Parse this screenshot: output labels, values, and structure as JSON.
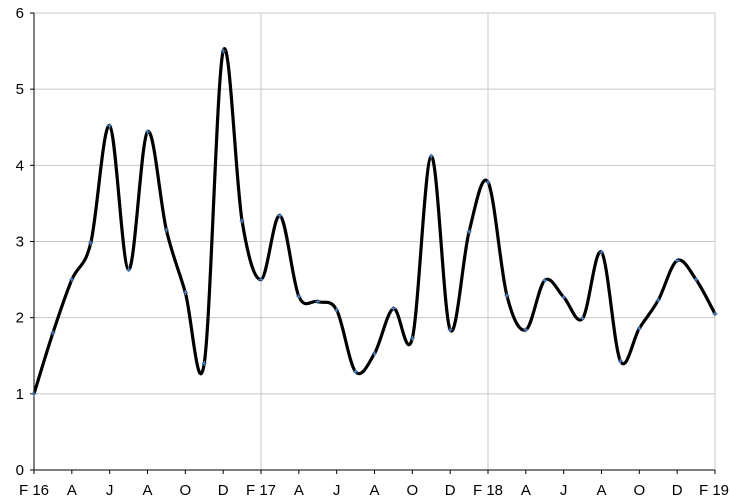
{
  "chart_data": {
    "type": "line",
    "title": "",
    "xlabel": "",
    "ylabel": "",
    "ylim": [
      0,
      6
    ],
    "yticks": [
      0,
      1,
      2,
      3,
      4,
      5,
      6
    ],
    "grid": {
      "horizontal": true,
      "vertical": "at year boundaries"
    },
    "legend": "none",
    "smooth": true,
    "x_tick_labels": [
      "F 16",
      "A",
      "J",
      "A",
      "O",
      "D",
      "F 17",
      "A",
      "J",
      "A",
      "O",
      "D",
      "F 18",
      "A",
      "J",
      "A",
      "O",
      "D",
      "F 19"
    ],
    "x": [
      "2016-02",
      "2016-03",
      "2016-04",
      "2016-05",
      "2016-06",
      "2016-07",
      "2016-08",
      "2016-09",
      "2016-10",
      "2016-11",
      "2016-12",
      "2017-01",
      "2017-02",
      "2017-03",
      "2017-04",
      "2017-05",
      "2017-06",
      "2017-07",
      "2017-08",
      "2017-09",
      "2017-10",
      "2017-11",
      "2017-12",
      "2018-01",
      "2018-02",
      "2018-03",
      "2018-04",
      "2018-05",
      "2018-06",
      "2018-07",
      "2018-08",
      "2018-09",
      "2018-10",
      "2018-11",
      "2018-12",
      "2019-01",
      "2019-02"
    ],
    "series": [
      {
        "values": [
          1.0,
          1.8,
          2.5,
          2.98,
          4.52,
          2.63,
          4.44,
          3.15,
          2.33,
          1.4,
          5.5,
          3.27,
          2.5,
          3.34,
          2.28,
          2.21,
          2.1,
          1.29,
          1.53,
          2.12,
          1.73,
          4.12,
          1.84,
          3.13,
          3.78,
          2.29,
          1.84,
          2.49,
          2.27,
          1.99,
          2.86,
          1.43,
          1.86,
          2.23,
          2.75,
          2.5,
          2.05
        ]
      }
    ],
    "colors": {
      "line": "#000000",
      "marker": "#4f81bd",
      "grid": "#c8c8c8",
      "axis": "#000000"
    }
  }
}
